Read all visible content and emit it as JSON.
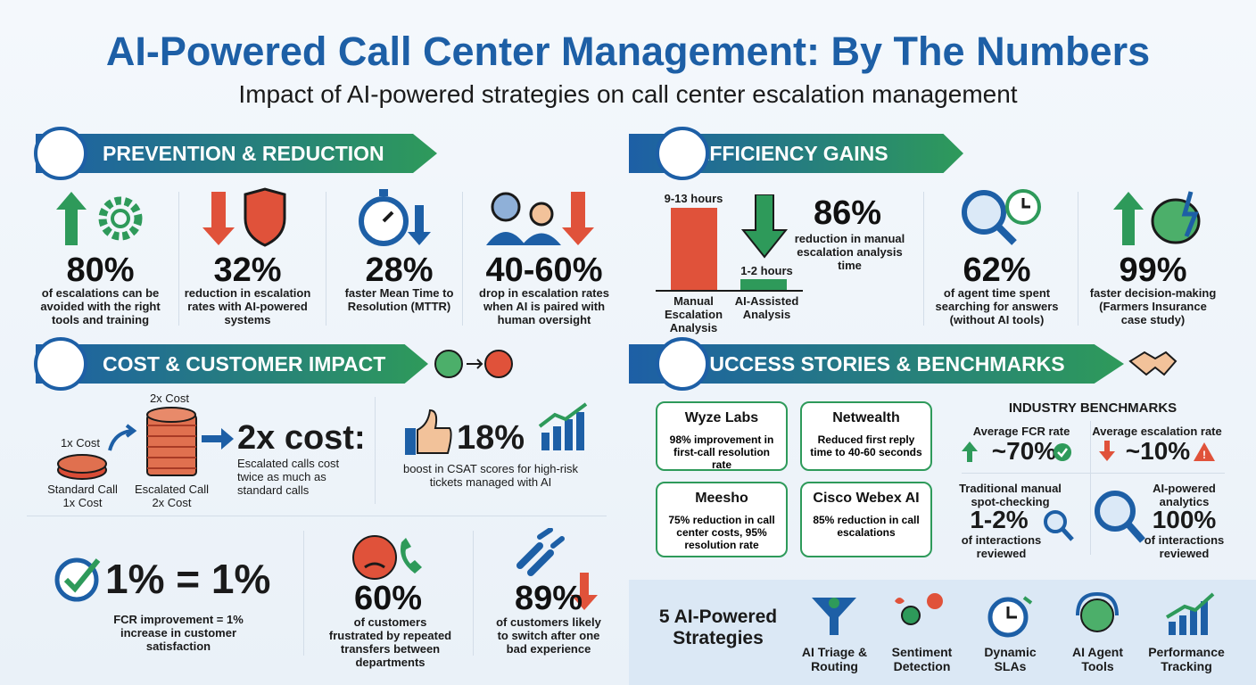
{
  "header": {
    "title": "AI-Powered Call Center Management: By The Numbers",
    "subtitle": "Impact of AI-powered strategies on call center escalation management"
  },
  "prevention": {
    "title": "PREVENTION & REDUCTION",
    "stats": [
      {
        "value": "80%",
        "text": "of escalations can be avoided with the right tools and training"
      },
      {
        "value": "32%",
        "text": "reduction in escalation rates with AI-powered systems"
      },
      {
        "value": "28%",
        "text": "faster Mean Time to Resolution (MTTR)"
      },
      {
        "value": "40-60%",
        "text": "drop in escalation rates when AI is paired with human oversight"
      }
    ]
  },
  "efficiency": {
    "title": "EFFICIENCY GAINS",
    "chart": {
      "bars": [
        {
          "label": "9-13 hours",
          "name": "Manual Escalation Analysis"
        },
        {
          "label": "1-2 hours",
          "name": "AI-Assisted Analysis"
        }
      ]
    },
    "stats": [
      {
        "value": "86%",
        "text": "reduction in manual escalation analysis time"
      },
      {
        "value": "62%",
        "text": "of agent time spent searching for answers (without AI tools)"
      },
      {
        "value": "99%",
        "text": "faster decision-making (Farmers Insurance case study)"
      }
    ]
  },
  "cost": {
    "title": "COST & CUSTOMER IMPACT",
    "standard": {
      "top": "1x Cost",
      "label": "Standard Call",
      "sub": "1x Cost"
    },
    "escalated": {
      "top": "2x Cost",
      "label": "Escalated Call",
      "sub": "2x Cost"
    },
    "headline": "2x cost:",
    "headline_text": "Escalated calls cost twice as much as standard calls",
    "csat": {
      "value": "18%",
      "text": "boost in CSAT scores for high-risk tickets managed with AI"
    },
    "fcr": {
      "value": "1% = 1%",
      "text": "FCR improvement = 1% increase in customer satisfaction"
    },
    "stats": [
      {
        "value": "60%",
        "text": "of customers frustrated by repeated transfers between departments"
      },
      {
        "value": "89%",
        "text": "of customers likely to switch after one bad experience"
      }
    ]
  },
  "success": {
    "title": "SUCCESS STORIES & BENCHMARKS",
    "stories": [
      {
        "name": "Wyze Labs",
        "text": "98% improvement in first-call resolution rate"
      },
      {
        "name": "Netwealth",
        "text": "Reduced first reply time to 40-60 seconds"
      },
      {
        "name": "Meesho",
        "text": "75% reduction in call center costs, 95% resolution rate"
      },
      {
        "name": "Cisco Webex AI",
        "text": "85% reduction in call escalations"
      }
    ],
    "benchmarks": {
      "title": "INDUSTRY BENCHMARKS",
      "items": [
        {
          "label": "Average FCR rate",
          "value": "~70%"
        },
        {
          "label": "Average escalation rate",
          "value": "~10%"
        },
        {
          "label": "Traditional manual spot-checking",
          "value": "1-2%",
          "text": "of interactions reviewed"
        },
        {
          "label": "AI-powered analytics",
          "value": "100%",
          "text": "of interactions reviewed"
        }
      ]
    }
  },
  "strategies": {
    "title": "5 AI-Powered Strategies",
    "items": [
      "AI Triage & Routing",
      "Sentiment Detection",
      "Dynamic SLAs",
      "AI Agent Tools",
      "Performance Tracking"
    ]
  }
}
